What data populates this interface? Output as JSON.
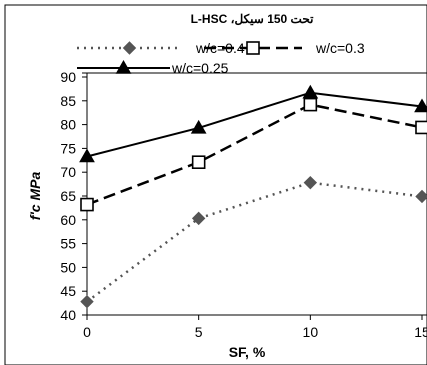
{
  "chart_data": {
    "type": "line",
    "title": "تحت 150 سيكل، L-HSC",
    "xlabel": "SF, %",
    "ylabel": "f'c MPa",
    "x": [
      0,
      5,
      10,
      15
    ],
    "xticks": [
      "0",
      "5",
      "10",
      "15"
    ],
    "ylim": [
      40,
      90
    ],
    "yticks": [
      "40",
      "45",
      "50",
      "55",
      "60",
      "65",
      "70",
      "75",
      "80",
      "85",
      "90"
    ],
    "grid": false,
    "legend_position": "top",
    "series": [
      {
        "name": "w/c=0.4",
        "values": [
          42.8,
          60.3,
          67.8,
          64.9
        ],
        "marker": "diamond",
        "line": "dotted",
        "color": "#555555"
      },
      {
        "name": "w/c=0.3",
        "values": [
          63.2,
          72.1,
          84.2,
          79.4
        ],
        "marker": "square-open",
        "line": "dashed",
        "color": "#000000"
      },
      {
        "name": "w/c=0.25",
        "values": [
          73.3,
          79.3,
          86.7,
          83.8
        ],
        "marker": "triangle",
        "line": "solid",
        "color": "#000000"
      }
    ]
  }
}
